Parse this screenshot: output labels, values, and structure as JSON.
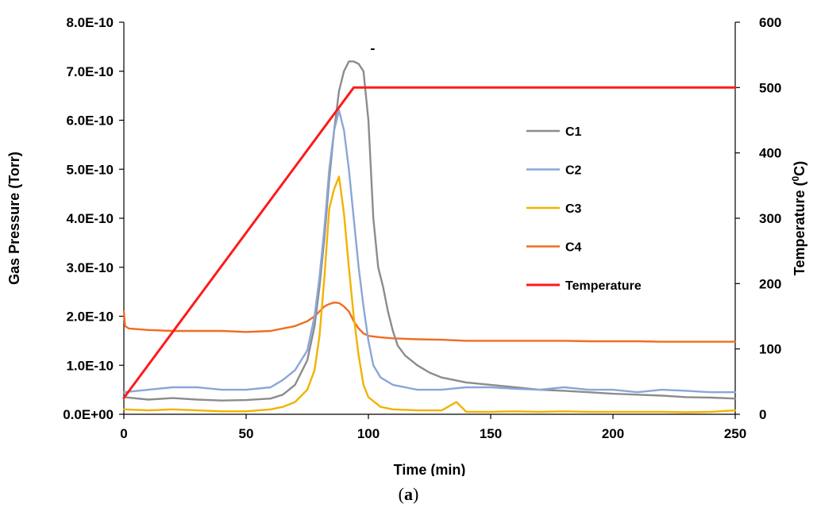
{
  "caption": {
    "open": "(",
    "letter": "a",
    "close": ")"
  },
  "colors": {
    "C1": "#8c8c8c",
    "C2": "#8aa6d9",
    "C3": "#f2b200",
    "C4": "#f26b21",
    "Temperature": "#ff1a1a"
  },
  "chart_data": {
    "type": "line",
    "xlabel": "Time (min)",
    "ylabel": "Gas Pressure (Torr)",
    "y2label_main": "Temperature (",
    "y2label_sup": "0",
    "y2label_end": "C)",
    "xlim": [
      0,
      250
    ],
    "ylim": [
      0,
      8e-10
    ],
    "y2lim": [
      0,
      600
    ],
    "xticks": [
      "0",
      "50",
      "100",
      "150",
      "200",
      "250"
    ],
    "yticks": [
      "0.0E+00",
      "1.0E-10",
      "2.0E-10",
      "3.0E-10",
      "4.0E-10",
      "5.0E-10",
      "6.0E-10",
      "7.0E-10",
      "8.0E-10"
    ],
    "y2ticks": [
      "0",
      "100",
      "200",
      "300",
      "400",
      "500",
      "600"
    ],
    "grid": false,
    "legend_position": "right-center",
    "series": [
      {
        "name": "C1",
        "axis": "left",
        "x": [
          0,
          10,
          20,
          30,
          40,
          50,
          60,
          65,
          70,
          75,
          78,
          80,
          82,
          84,
          86,
          88,
          90,
          92,
          94,
          96,
          98,
          100,
          102,
          104,
          106,
          108,
          110,
          112,
          115,
          120,
          125,
          130,
          140,
          150,
          160,
          170,
          180,
          190,
          200,
          210,
          220,
          230,
          240,
          250
        ],
        "y": [
          3.5e-11,
          3e-11,
          3.3e-11,
          3e-11,
          2.8e-11,
          2.9e-11,
          3.2e-11,
          4e-11,
          6e-11,
          1.1e-10,
          1.8e-10,
          2.6e-10,
          3.6e-10,
          4.8e-10,
          5.8e-10,
          6.6e-10,
          7e-10,
          7.2e-10,
          7.2e-10,
          7.15e-10,
          7e-10,
          6e-10,
          4e-10,
          3e-10,
          2.6e-10,
          2.1e-10,
          1.7e-10,
          1.4e-10,
          1.2e-10,
          1e-10,
          8.5e-11,
          7.5e-11,
          6.5e-11,
          6e-11,
          5.5e-11,
          5e-11,
          4.8e-11,
          4.5e-11,
          4.2e-11,
          4e-11,
          3.8e-11,
          3.5e-11,
          3.4e-11,
          3.2e-11
        ]
      },
      {
        "name": "C2",
        "axis": "left",
        "x": [
          0,
          10,
          20,
          30,
          40,
          50,
          60,
          65,
          70,
          75,
          78,
          80,
          82,
          84,
          86,
          88,
          90,
          92,
          94,
          96,
          98,
          100,
          102,
          105,
          110,
          115,
          120,
          130,
          140,
          150,
          160,
          170,
          180,
          190,
          200,
          210,
          220,
          230,
          240,
          250
        ],
        "y": [
          4.5e-11,
          5e-11,
          5.5e-11,
          5.5e-11,
          5e-11,
          5e-11,
          5.5e-11,
          7e-11,
          9e-11,
          1.3e-10,
          2e-10,
          2.8e-10,
          3.8e-10,
          5e-10,
          5.8e-10,
          6.2e-10,
          5.8e-10,
          5e-10,
          4e-10,
          3e-10,
          2.2e-10,
          1.5e-10,
          1e-10,
          7.5e-11,
          6e-11,
          5.5e-11,
          5e-11,
          5e-11,
          5.5e-11,
          5.5e-11,
          5.2e-11,
          5e-11,
          5.5e-11,
          5e-11,
          5e-11,
          4.5e-11,
          5e-11,
          4.8e-11,
          4.5e-11,
          4.5e-11
        ]
      },
      {
        "name": "C3",
        "axis": "left",
        "x": [
          0,
          10,
          20,
          30,
          40,
          50,
          60,
          65,
          70,
          75,
          78,
          80,
          82,
          84,
          86,
          88,
          90,
          92,
          94,
          96,
          98,
          100,
          105,
          110,
          120,
          130,
          136,
          140,
          150,
          160,
          170,
          180,
          190,
          200,
          210,
          220,
          230,
          240,
          250
        ],
        "y": [
          1e-11,
          8e-12,
          1e-11,
          8e-12,
          6e-12,
          6e-12,
          1e-11,
          1.5e-11,
          2.5e-11,
          5e-11,
          9e-11,
          1.6e-10,
          2.8e-10,
          4.2e-10,
          4.6e-10,
          4.85e-10,
          4.1e-10,
          3e-10,
          2e-10,
          1.2e-10,
          6e-11,
          3.5e-11,
          1.5e-11,
          1e-11,
          8e-12,
          8e-12,
          2.5e-11,
          5e-12,
          5e-12,
          6e-12,
          5e-12,
          6e-12,
          5e-12,
          5e-12,
          5e-12,
          5e-12,
          4e-12,
          5e-12,
          8e-12
        ]
      },
      {
        "name": "C4",
        "axis": "left",
        "x": [
          0,
          0.5,
          2,
          10,
          20,
          30,
          40,
          50,
          60,
          65,
          70,
          75,
          78,
          80,
          82,
          84,
          86,
          88,
          90,
          92,
          94,
          96,
          98,
          100,
          105,
          110,
          120,
          130,
          140,
          150,
          160,
          170,
          180,
          190,
          200,
          210,
          220,
          230,
          240,
          250
        ],
        "y": [
          2.1e-10,
          1.8e-10,
          1.75e-10,
          1.72e-10,
          1.7e-10,
          1.7e-10,
          1.7e-10,
          1.68e-10,
          1.7e-10,
          1.75e-10,
          1.8e-10,
          1.9e-10,
          2e-10,
          2.1e-10,
          2.2e-10,
          2.25e-10,
          2.28e-10,
          2.27e-10,
          2.2e-10,
          2.1e-10,
          1.9e-10,
          1.75e-10,
          1.65e-10,
          1.6e-10,
          1.57e-10,
          1.55e-10,
          1.53e-10,
          1.52e-10,
          1.5e-10,
          1.5e-10,
          1.5e-10,
          1.5e-10,
          1.5e-10,
          1.49e-10,
          1.49e-10,
          1.49e-10,
          1.48e-10,
          1.48e-10,
          1.48e-10,
          1.48e-10
        ]
      },
      {
        "name": "Temperature",
        "axis": "right",
        "x": [
          0,
          94,
          250
        ],
        "y": [
          25,
          500,
          500
        ]
      }
    ]
  }
}
